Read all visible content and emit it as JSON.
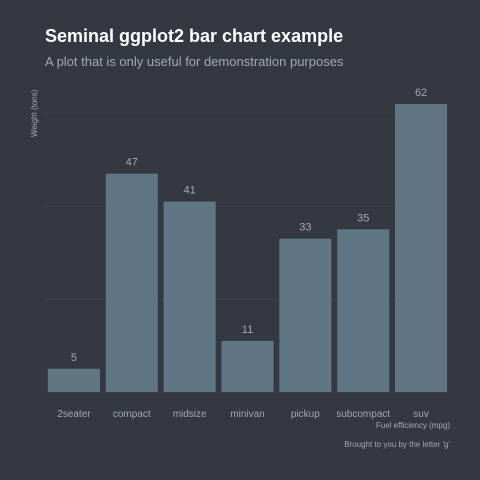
{
  "chart_data": {
    "type": "bar",
    "title": "Seminal ggplot2 bar chart example",
    "subtitle": "A plot that is only useful for demonstration purposes",
    "xlabel": "Fuel efficiency (mpg)",
    "ylabel": "Weight (tons)",
    "caption": "Brought to you by the letter 'g'",
    "categories": [
      "2seater",
      "compact",
      "midsize",
      "minivan",
      "pickup",
      "subcompact",
      "suv"
    ],
    "values": [
      5,
      47,
      41,
      11,
      33,
      35,
      62
    ],
    "ylim": [
      0,
      65
    ],
    "y_gridlines": [
      0,
      20,
      40,
      60
    ],
    "grid": "horizontal",
    "show_data_labels": true,
    "show_y_tick_labels": false,
    "colors": {
      "background": "#343841",
      "bar": "#5f7785",
      "grid": "#3d414b",
      "title": "#ffffff",
      "text": "#a3a9b3"
    }
  }
}
